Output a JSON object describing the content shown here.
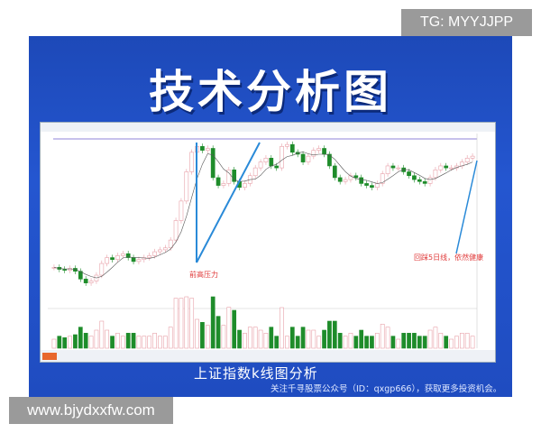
{
  "banner": {
    "title": "技术分析图",
    "caption": "上证指数k线图分析",
    "subcaption": "关注千寻股票公众号（ID：qxgp666），获取更多投资机会。"
  },
  "watermarks": {
    "top_right": "TG: MYYJJPP",
    "bottom_left": "www.bjydxxfw.com"
  },
  "colors": {
    "up": "#e8a0a8",
    "down": "#1e8c2a",
    "banner": "#2456d0",
    "annotation": "#e03a3a",
    "arrow": "#2a8ad8"
  },
  "chart_data": {
    "type": "candlestick",
    "title": "",
    "annotations": [
      "前高压力",
      "回踩5日线，依然健康"
    ],
    "closes": [
      2960,
      2950,
      2945,
      2955,
      2940,
      2900,
      2880,
      2890,
      2920,
      2980,
      3010,
      3000,
      3020,
      3030,
      3010,
      2990,
      3000,
      3010,
      3020,
      3040,
      3050,
      3060,
      3100,
      3200,
      3300,
      3450,
      3550,
      3580,
      3560,
      3570,
      3420,
      3380,
      3390,
      3460,
      3400,
      3370,
      3390,
      3430,
      3470,
      3500,
      3520,
      3480,
      3470,
      3580,
      3590,
      3550,
      3540,
      3500,
      3530,
      3560,
      3570,
      3540,
      3480,
      3420,
      3400,
      3410,
      3430,
      3420,
      3390,
      3380,
      3370,
      3390,
      3440,
      3480,
      3470,
      3470,
      3450,
      3430,
      3410,
      3400,
      3390,
      3420,
      3460,
      3480,
      3470,
      3470,
      3480,
      3500,
      3520,
      3530
    ],
    "grid": false
  }
}
